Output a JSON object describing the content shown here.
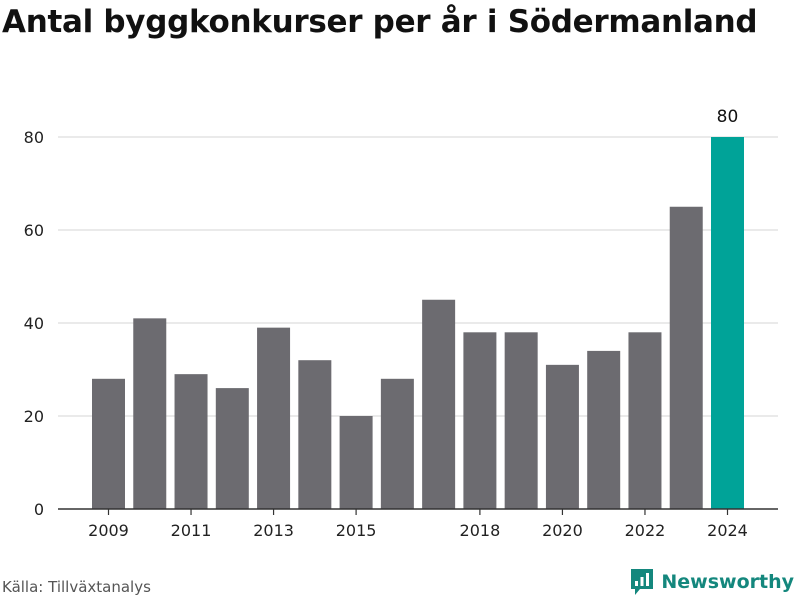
{
  "title": "Antal byggkonkurser per år i Södermanland",
  "source": "Källa: Tillväxtanalys",
  "brand": {
    "name": "Newsworthy",
    "icon": "newsworthy-logo-icon",
    "color": "#14877d"
  },
  "colors": {
    "bar": "#6c6b70",
    "highlight": "#00a398",
    "grid": "#dddddd",
    "axis": "#333333"
  },
  "chart_data": {
    "type": "bar",
    "title": "Antal byggkonkurser per år i Södermanland",
    "categories": [
      "2009",
      "2010",
      "2011",
      "2012",
      "2013",
      "2014",
      "2015",
      "2016",
      "2017",
      "2018",
      "2019",
      "2020",
      "2021",
      "2022",
      "2023",
      "2024"
    ],
    "values": [
      28,
      41,
      29,
      26,
      39,
      32,
      20,
      28,
      45,
      38,
      38,
      31,
      34,
      38,
      65,
      80
    ],
    "xtick_labels": [
      "2009",
      "2011",
      "2013",
      "2015",
      "2018",
      "2020",
      "2022",
      "2024"
    ],
    "yticks": [
      0,
      20,
      40,
      60,
      80
    ],
    "ylim": [
      0,
      80
    ],
    "grid": true,
    "highlight_index": 15,
    "data_labels": [
      {
        "index": 15,
        "text": "80"
      }
    ],
    "xlabel": "",
    "ylabel": ""
  }
}
